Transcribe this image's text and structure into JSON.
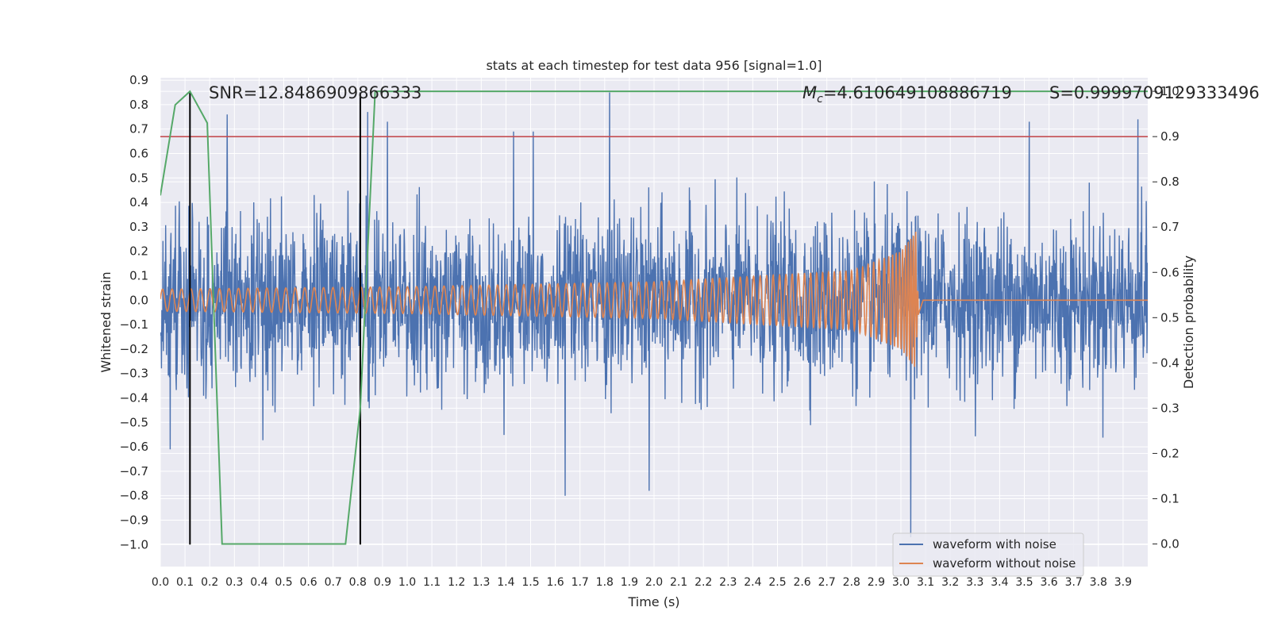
{
  "chart_data": {
    "type": "line",
    "title": "stats at each timestep for test data 956 [signal=1.0]",
    "xlabel": "Time (s)",
    "ylabel": "Whitened strain",
    "y2label": "Detection probability",
    "xlim": [
      0.0,
      4.0
    ],
    "ylim": [
      -1.09,
      0.91
    ],
    "y2lim": [
      -0.05,
      1.03
    ],
    "x_ticks": [
      "0.0",
      "0.1",
      "0.2",
      "0.3",
      "0.4",
      "0.5",
      "0.6",
      "0.7",
      "0.8",
      "0.9",
      "1.0",
      "1.1",
      "1.2",
      "1.3",
      "1.4",
      "1.5",
      "1.6",
      "1.7",
      "1.8",
      "1.9",
      "2.0",
      "2.1",
      "2.2",
      "2.3",
      "2.4",
      "2.5",
      "2.6",
      "2.7",
      "2.8",
      "2.9",
      "3.0",
      "3.1",
      "3.2",
      "3.3",
      "3.4",
      "3.5",
      "3.6",
      "3.7",
      "3.8",
      "3.9"
    ],
    "y_ticks": [
      "0.9",
      "0.8",
      "0.7",
      "0.6",
      "0.5",
      "0.4",
      "0.3",
      "0.2",
      "0.1",
      "0.0",
      "−0.1",
      "−0.2",
      "−0.3",
      "−0.4",
      "−0.5",
      "−0.6",
      "−0.7",
      "−0.8",
      "−0.9",
      "−1.0"
    ],
    "y2_ticks": [
      "1.0",
      "0.9",
      "0.8",
      "0.7",
      "0.6",
      "0.5",
      "0.4",
      "0.3",
      "0.2",
      "0.1",
      "0.0"
    ],
    "grid": true,
    "legend_position": "bottom-right",
    "annotations": {
      "snr": "SNR=12.8486909866333",
      "mc_symbol": "M",
      "mc_sub": "c",
      "mc_value": "=4.610649108886719",
      "s": "S=0.9999709129333496"
    },
    "series": [
      {
        "name": "waveform with noise",
        "color": "#4c72b0",
        "description": "noisy whitened strain, amplitude mostly within ±0.45 with spikes",
        "peaks": [
          {
            "x": 0.27,
            "y": 0.76
          },
          {
            "x": 0.84,
            "y": 0.77
          },
          {
            "x": 0.92,
            "y": 0.73
          },
          {
            "x": 1.43,
            "y": 0.69
          },
          {
            "x": 1.51,
            "y": 0.69
          },
          {
            "x": 1.82,
            "y": 0.85
          },
          {
            "x": 3.04,
            "y": -0.97
          },
          {
            "x": 3.52,
            "y": 0.73
          },
          {
            "x": 3.96,
            "y": 0.74
          },
          {
            "x": 1.64,
            "y": -0.8
          },
          {
            "x": 1.98,
            "y": -0.78
          },
          {
            "x": 0.04,
            "y": -0.61
          }
        ]
      },
      {
        "name": "waveform without noise",
        "color": "#dd8452",
        "description": "inspiral chirp ending at merger near t=3.07 s",
        "amplitude": [
          {
            "t": 0.0,
            "a": 0.045
          },
          {
            "t": 1.0,
            "a": 0.055
          },
          {
            "t": 2.0,
            "a": 0.075
          },
          {
            "t": 2.8,
            "a": 0.12
          },
          {
            "t": 3.0,
            "a": 0.2
          },
          {
            "t": 3.06,
            "a": 0.28
          },
          {
            "t": 3.07,
            "a": 0.0
          },
          {
            "t": 4.0,
            "a": 0.0
          }
        ],
        "merger_time": 3.07
      },
      {
        "name": "detection probability",
        "color": "#55a868",
        "axis": "right",
        "points": [
          [
            0.0,
            0.77
          ],
          [
            0.06,
            0.97
          ],
          [
            0.12,
            1.0
          ],
          [
            0.19,
            0.93
          ],
          [
            0.25,
            0.0
          ],
          [
            0.31,
            -0.0
          ],
          [
            0.5,
            -0.0
          ],
          [
            0.75,
            0.0
          ],
          [
            0.81,
            0.3
          ],
          [
            0.87,
            1.0
          ],
          [
            4.0,
            1.0
          ]
        ]
      }
    ],
    "threshold_line": {
      "y2": 0.9,
      "color": "#c44e52"
    },
    "window_lines": {
      "x": [
        0.12,
        0.81
      ],
      "y_range": [
        -1.0,
        0.85
      ],
      "color": "#000000"
    },
    "legend": [
      {
        "label": "waveform with noise",
        "color": "#4c72b0"
      },
      {
        "label": "waveform without noise",
        "color": "#dd8452"
      }
    ]
  },
  "colors": {
    "plot_bg": "#eaeaf2",
    "grid": "#ffffff",
    "noisy": "#4c72b0",
    "clean": "#dd8452",
    "prob": "#55a868",
    "threshold": "#c44e52",
    "text": "#262626"
  }
}
